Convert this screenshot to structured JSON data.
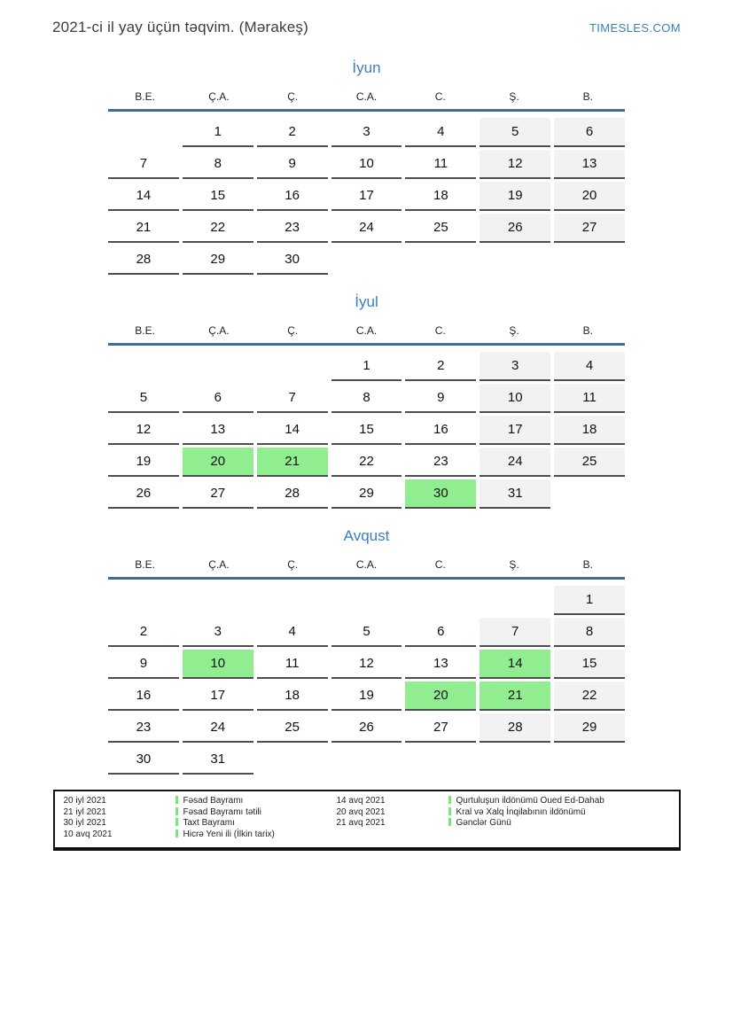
{
  "page": {
    "title": "2021-ci il yay üçün təqvim. (Mərakeş)",
    "brand": "TIMESLES.COM"
  },
  "colors": {
    "accent_blue": "#3b7ec0",
    "header_line": "#3d6d9e",
    "weekend_bg": "#f2f2f2",
    "holiday_bg": "#90ee90",
    "legend_bar": "#77e877",
    "cell_line": "#4d4d4d"
  },
  "weekdays": [
    "B.E.",
    "Ç.A.",
    "Ç.",
    "C.A.",
    "C.",
    "Ş.",
    "B."
  ],
  "weekend_columns": [
    5,
    6
  ],
  "months": [
    {
      "name": "İyun",
      "weeks": [
        [
          "",
          1,
          2,
          3,
          4,
          5,
          6
        ],
        [
          7,
          8,
          9,
          10,
          11,
          12,
          13
        ],
        [
          14,
          15,
          16,
          17,
          18,
          19,
          20
        ],
        [
          21,
          22,
          23,
          24,
          25,
          26,
          27
        ],
        [
          28,
          29,
          30,
          "",
          "",
          "",
          ""
        ]
      ],
      "holidays": []
    },
    {
      "name": "İyul",
      "weeks": [
        [
          "",
          "",
          "",
          1,
          2,
          3,
          4
        ],
        [
          5,
          6,
          7,
          8,
          9,
          10,
          11
        ],
        [
          12,
          13,
          14,
          15,
          16,
          17,
          18
        ],
        [
          19,
          20,
          21,
          22,
          23,
          24,
          25
        ],
        [
          26,
          27,
          28,
          29,
          30,
          31,
          ""
        ]
      ],
      "holidays": [
        20,
        21,
        30
      ]
    },
    {
      "name": "Avqust",
      "weeks": [
        [
          "",
          "",
          "",
          "",
          "",
          "",
          1
        ],
        [
          2,
          3,
          4,
          5,
          6,
          7,
          8
        ],
        [
          9,
          10,
          11,
          12,
          13,
          14,
          15
        ],
        [
          16,
          17,
          18,
          19,
          20,
          21,
          22
        ],
        [
          23,
          24,
          25,
          26,
          27,
          28,
          29
        ],
        [
          30,
          31,
          "",
          "",
          "",
          "",
          ""
        ]
      ],
      "holidays": [
        10,
        14,
        20,
        21
      ]
    }
  ],
  "legend": {
    "left": [
      {
        "date": "20 iyl 2021",
        "name": "Fəsad Bayramı"
      },
      {
        "date": "21 iyl 2021",
        "name": "Fəsad Bayramı tətili"
      },
      {
        "date": "30 iyl 2021",
        "name": "Taxt Bayramı"
      },
      {
        "date": "10 avq 2021",
        "name": "Hicrə Yeni ili (İlkin tarix)"
      }
    ],
    "right": [
      {
        "date": "14 avq 2021",
        "name": "Qurtuluşun ildönümü Oued Ed-Dahab"
      },
      {
        "date": "20 avq 2021",
        "name": "Kral və Xalq İnqilabının ildönümü"
      },
      {
        "date": "21 avq 2021",
        "name": "Gənclər Günü"
      }
    ]
  }
}
